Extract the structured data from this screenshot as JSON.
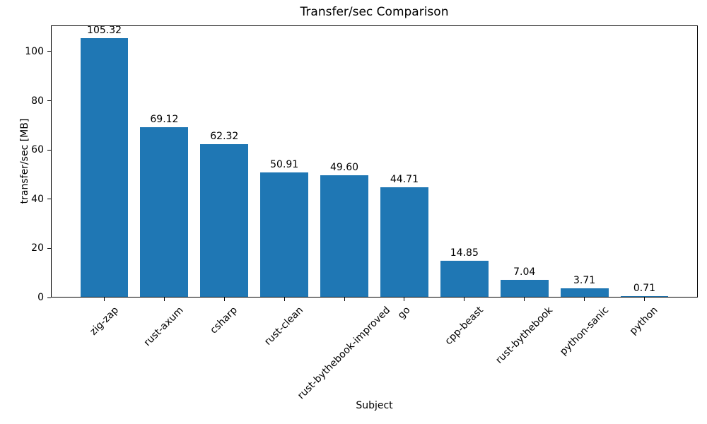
{
  "chart_data": {
    "type": "bar",
    "title": "Transfer/sec Comparison",
    "xlabel": "Subject",
    "ylabel": "transfer/sec [MB]",
    "categories": [
      "zig-zap",
      "rust-axum",
      "csharp",
      "rust-clean",
      "rust-bythebook-improved",
      "go",
      "cpp-beast",
      "rust-bythebook",
      "python-sanic",
      "python"
    ],
    "values": [
      105.32,
      69.12,
      62.32,
      50.91,
      49.6,
      44.71,
      14.85,
      7.04,
      3.71,
      0.71
    ],
    "bar_labels": [
      "105.32",
      "69.12",
      "62.32",
      "50.91",
      "49.60",
      "44.71",
      "14.85",
      "7.04",
      "3.71",
      "0.71"
    ],
    "y_ticks": [
      0,
      20,
      40,
      60,
      80,
      100
    ],
    "ylim": [
      0,
      110.6
    ],
    "bar_color": "#1f77b4",
    "text_color": "#000000",
    "background": "#ffffff",
    "grid": false,
    "legend": null,
    "x_tick_rotation_deg": 45
  }
}
